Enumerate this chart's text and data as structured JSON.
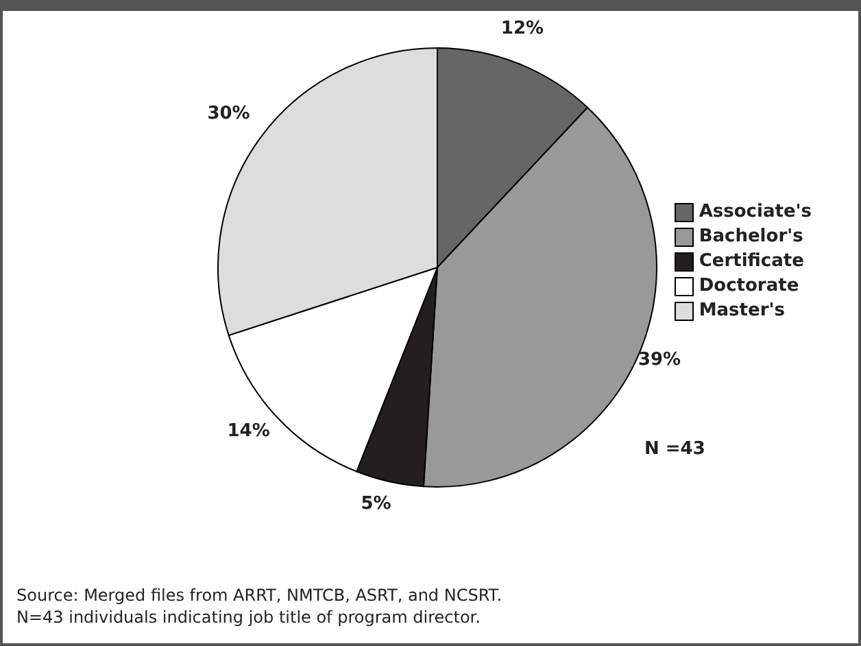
{
  "chart_data": {
    "type": "pie",
    "categories": [
      "Associate's",
      "Bachelor's",
      "Certificate",
      "Doctorate",
      "Master's"
    ],
    "values": [
      12,
      39,
      5,
      14,
      30
    ],
    "colors": [
      "#666666",
      "#999999",
      "#231f20",
      "#ffffff",
      "#dddddd"
    ],
    "value_labels": [
      "12%",
      "39%",
      "5%",
      "14%",
      "30%"
    ],
    "legend": "right",
    "annotations": [
      "N =43",
      "Source:  Merged files from ARRT, NMTCB, ASRT, and NCSRT.",
      "N=43 individuals indicating job title of program director."
    ]
  }
}
